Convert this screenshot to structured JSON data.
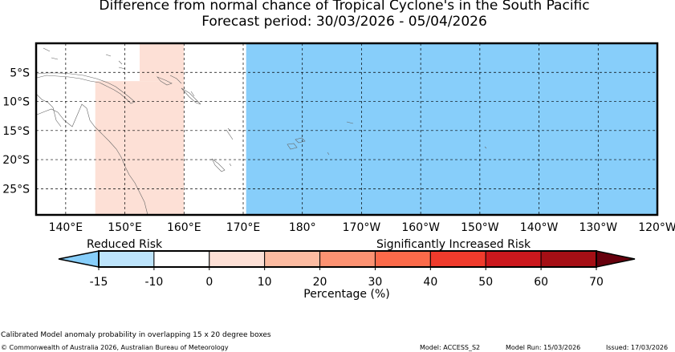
{
  "title": "Difference from normal chance of Tropical Cyclone's in the South Pacific",
  "subtitle": "Forecast period: 30/03/2026 - 05/04/2026",
  "map": {
    "lat_labels": [
      "5°S",
      "10°S",
      "15°S",
      "20°S",
      "25°S"
    ],
    "lat_values": [
      -5,
      -10,
      -15,
      -20,
      -25
    ],
    "lon_labels": [
      "140°E",
      "150°E",
      "160°E",
      "170°E",
      "180°",
      "170°W",
      "160°W",
      "150°W",
      "140°W",
      "130°W",
      "120°W"
    ],
    "lon_values": [
      140,
      150,
      160,
      170,
      180,
      190,
      200,
      210,
      220,
      230,
      240
    ],
    "lon_range": [
      135,
      240
    ],
    "lat_range": [
      -29.5,
      0
    ],
    "grid": "dashed",
    "anomaly_boxes": [
      {
        "category": "0 to 10",
        "lon": [
          145,
          160
        ],
        "lat": [
          -29.5,
          -6.5
        ],
        "color": "#fde0d6"
      },
      {
        "category": "0 to 10",
        "lon": [
          152.5,
          160
        ],
        "lat": [
          -6.5,
          0
        ],
        "color": "#fde0d6"
      },
      {
        "category": "-15 to -10",
        "lon": [
          170.5,
          240
        ],
        "lat": [
          -29.5,
          0
        ],
        "color": "#87cefa"
      }
    ]
  },
  "colorbar": {
    "reduced_label": "Reduced Risk",
    "increased_label": "Significantly Increased Risk",
    "label": "Percentage (%)",
    "ticks": [
      "-15",
      "-10",
      "0",
      "10",
      "20",
      "30",
      "40",
      "50",
      "60",
      "70"
    ],
    "under_color": "#87cefa",
    "over_color": "#67000d",
    "colors": [
      "#bde4fb",
      "#ffffff",
      "#fde0d6",
      "#fcbba1",
      "#fc9272",
      "#fb6a4a",
      "#ef3b2c",
      "#cb181d",
      "#a50f15"
    ]
  },
  "footer": {
    "note": "Calibrated Model anomaly probability in overlapping 15 x 20 degree boxes",
    "copyright": "© Commonwealth of Australia 2026, Australian Bureau of Meteorology",
    "model": "Model: ACCESS_S2",
    "model_run": "Model Run: 15/03/2026",
    "issued": "Issued: 17/03/2026"
  }
}
